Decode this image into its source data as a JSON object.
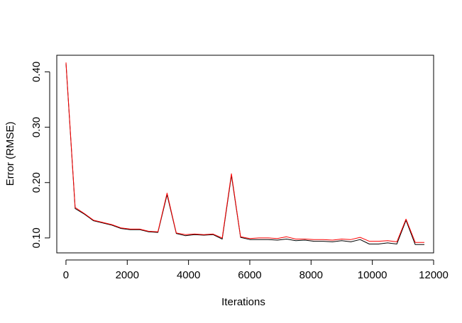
{
  "chart_data": {
    "type": "line",
    "title": "",
    "xlabel": "Iterations",
    "ylabel": "Error (RMSE)",
    "xlim": [
      -300,
      12000
    ],
    "ylim": [
      0.073,
      0.43
    ],
    "x_ticks": [
      0,
      2000,
      4000,
      6000,
      8000,
      10000,
      12000
    ],
    "x_tick_labels": [
      "0",
      "2000",
      "4000",
      "6000",
      "8000",
      "10000",
      "12000"
    ],
    "y_ticks": [
      0.1,
      0.2,
      0.3,
      0.4
    ],
    "y_tick_labels": [
      "0.10",
      "0.20",
      "0.30",
      "0.40"
    ],
    "grid": false,
    "legend": "none",
    "x": [
      0,
      300,
      600,
      900,
      1200,
      1500,
      1800,
      2100,
      2400,
      2700,
      3000,
      3300,
      3600,
      3900,
      4200,
      4500,
      4800,
      5100,
      5400,
      5700,
      6000,
      6300,
      6600,
      6900,
      7200,
      7500,
      7800,
      8100,
      8400,
      8700,
      9000,
      9300,
      9600,
      9900,
      10200,
      10500,
      10800,
      11100,
      11400,
      11700
    ],
    "series": [
      {
        "color": "#000000",
        "values": [
          0.415,
          0.153,
          0.143,
          0.131,
          0.127,
          0.123,
          0.117,
          0.115,
          0.115,
          0.111,
          0.11,
          0.178,
          0.108,
          0.104,
          0.106,
          0.105,
          0.106,
          0.098,
          0.213,
          0.101,
          0.097,
          0.097,
          0.097,
          0.096,
          0.098,
          0.095,
          0.096,
          0.094,
          0.094,
          0.093,
          0.095,
          0.093,
          0.097,
          0.089,
          0.089,
          0.091,
          0.089,
          0.132,
          0.088,
          0.088
        ]
      },
      {
        "color": "#ff0000",
        "values": [
          0.417,
          0.155,
          0.144,
          0.132,
          0.128,
          0.124,
          0.118,
          0.116,
          0.116,
          0.112,
          0.111,
          0.181,
          0.109,
          0.106,
          0.107,
          0.106,
          0.107,
          0.1,
          0.216,
          0.102,
          0.099,
          0.1,
          0.1,
          0.099,
          0.102,
          0.098,
          0.098,
          0.097,
          0.097,
          0.096,
          0.098,
          0.097,
          0.101,
          0.094,
          0.094,
          0.095,
          0.093,
          0.134,
          0.092,
          0.092
        ]
      }
    ]
  }
}
